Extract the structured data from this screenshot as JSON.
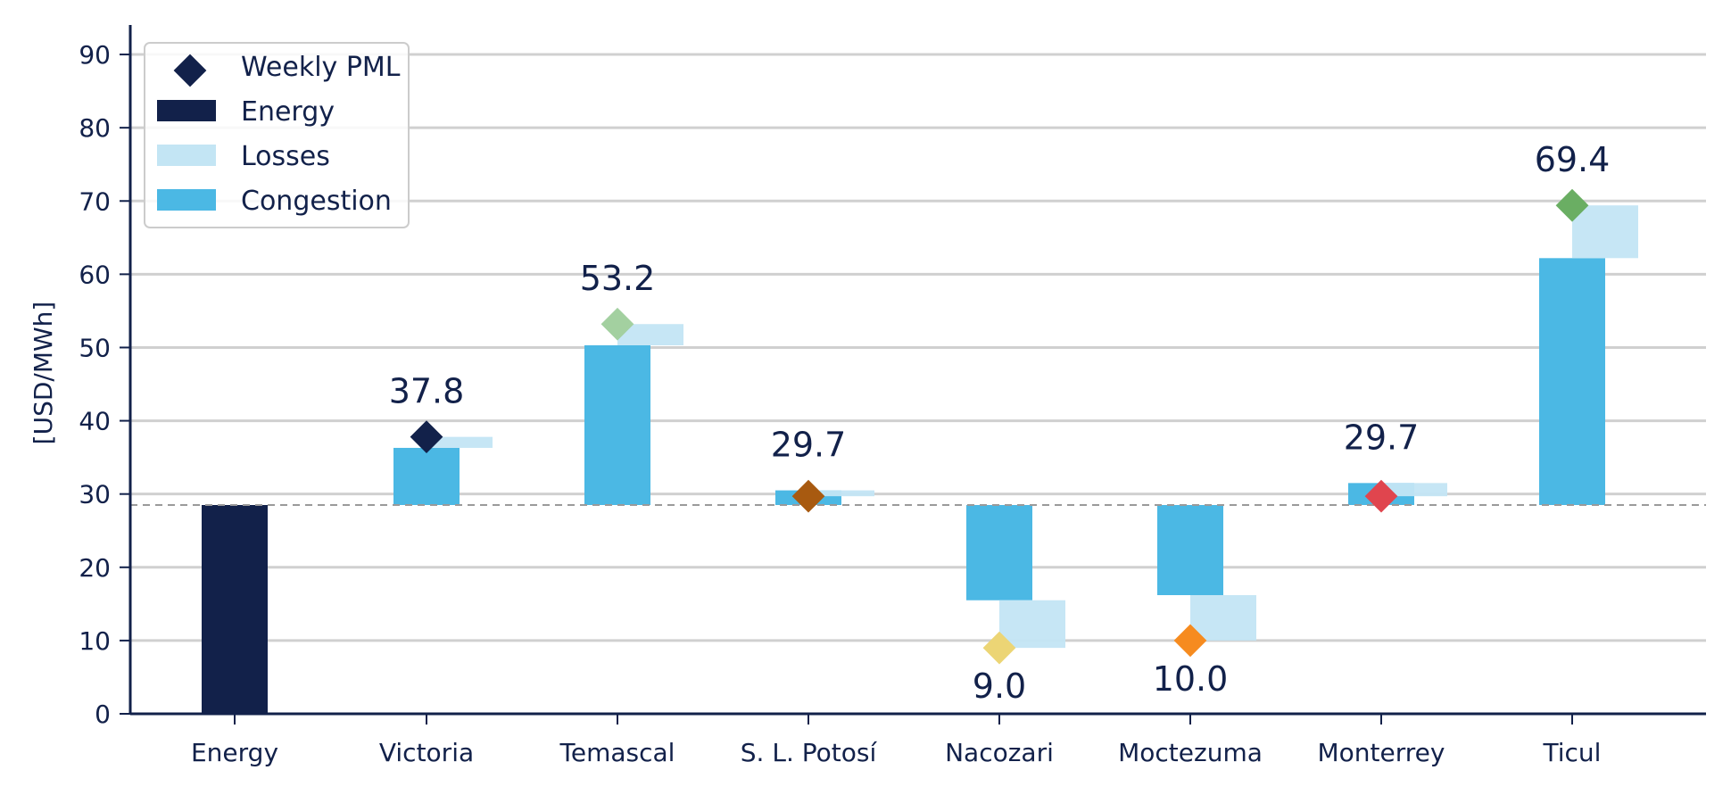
{
  "chart_data": {
    "type": "bar",
    "subtype": "waterfall",
    "title": "",
    "xlabel": "",
    "ylabel": "[USD/MWh]",
    "ylim": [
      0,
      95
    ],
    "yticks": [
      0,
      10,
      20,
      30,
      40,
      50,
      60,
      70,
      80,
      90
    ],
    "grid": true,
    "legend_position": "top-left",
    "reference_line": 28.5,
    "categories": [
      "Energy",
      "Victoria",
      "Temascal",
      "S. L. Potosí",
      "Nacozari",
      "Moctezuma",
      "Monterrey",
      "Ticul"
    ],
    "energy": {
      "value": 28.5,
      "color": "#12214a"
    },
    "nodes": [
      {
        "name": "Victoria",
        "congestion": [
          28.5,
          36.3
        ],
        "losses": [
          36.3,
          37.8
        ],
        "pml": 37.8,
        "label": "37.8",
        "pml_color": "#12214a"
      },
      {
        "name": "Temascal",
        "congestion": [
          28.5,
          50.3
        ],
        "losses": [
          50.3,
          53.2
        ],
        "pml": 53.2,
        "label": "53.2",
        "pml_color": "#a3d0a0"
      },
      {
        "name": "S. L. Potosí",
        "congestion": [
          28.5,
          30.5
        ],
        "losses": [
          29.7,
          30.5
        ],
        "pml": 29.7,
        "label": "29.7",
        "pml_color": "#a85a10"
      },
      {
        "name": "Nacozari",
        "congestion": [
          15.5,
          28.5
        ],
        "losses": [
          9.0,
          15.5
        ],
        "pml": 9.0,
        "label": "9.0",
        "pml_color": "#ecd575"
      },
      {
        "name": "Moctezuma",
        "congestion": [
          16.2,
          28.5
        ],
        "losses": [
          10.0,
          16.2
        ],
        "pml": 10.0,
        "label": "10.0",
        "pml_color": "#f68b1f"
      },
      {
        "name": "Monterrey",
        "congestion": [
          28.5,
          31.5
        ],
        "losses": [
          29.7,
          31.5
        ],
        "pml": 29.7,
        "label": "29.7",
        "pml_color": "#e0454e"
      },
      {
        "name": "Ticul",
        "congestion": [
          28.5,
          62.2
        ],
        "losses": [
          62.2,
          69.4
        ],
        "pml": 69.4,
        "label": "69.4",
        "pml_color": "#6aae63"
      }
    ],
    "legend": [
      {
        "key": "pml",
        "label": "Weekly PML",
        "color": "#12214a"
      },
      {
        "key": "energy",
        "label": "Energy",
        "color": "#12214a"
      },
      {
        "key": "losses",
        "label": "Losses",
        "color": "#c3e5f4"
      },
      {
        "key": "congestion",
        "label": "Congestion",
        "color": "#4bb8e4"
      }
    ],
    "colors": {
      "congestion": "#4bb8e4",
      "losses": "#c3e5f4",
      "axis": "#12214a",
      "grid": "#d0d0d0",
      "reference": "#9a9a9a"
    }
  }
}
